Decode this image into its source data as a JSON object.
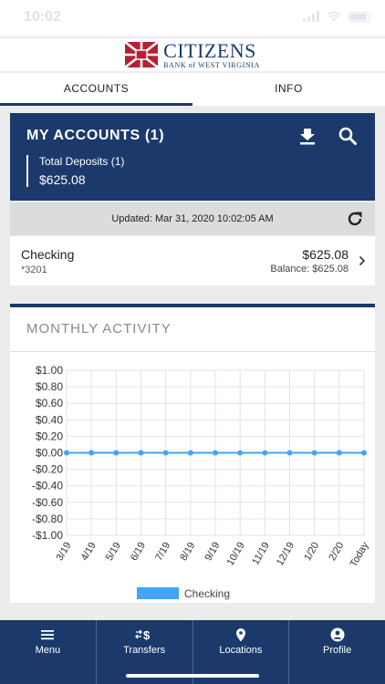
{
  "status": {
    "time": "10:02"
  },
  "brand": {
    "name": "CITIZENS",
    "sub": "BANK of WEST VIRGINIA"
  },
  "tabs": [
    {
      "label": "ACCOUNTS",
      "active": true
    },
    {
      "label": "INFO",
      "active": false
    }
  ],
  "accounts_header": {
    "title": "MY ACCOUNTS (1)",
    "summary_label": "Total Deposits (1)",
    "summary_amount": "$625.08",
    "icons": [
      "download-icon",
      "search-icon"
    ]
  },
  "updated": {
    "prefix": "Updated: ",
    "timestamp": "Mar 31, 2020 10:02:05 AM"
  },
  "account": {
    "name": "Checking",
    "number": "*3201",
    "amount": "$625.08",
    "balance": "Balance: $625.08"
  },
  "monthly_activity": {
    "title": "MONTHLY ACTIVITY"
  },
  "chart_data": {
    "type": "line",
    "title": "",
    "categories": [
      "3/19",
      "4/19",
      "5/19",
      "6/19",
      "7/19",
      "8/19",
      "9/19",
      "10/19",
      "11/19",
      "12/19",
      "1/20",
      "2/20",
      "Today"
    ],
    "series": [
      {
        "name": "Checking",
        "values": [
          0,
          0,
          0,
          0,
          0,
          0,
          0,
          0,
          0,
          0,
          0,
          0,
          0
        ],
        "color": "#42a5f5"
      }
    ],
    "yticks": [
      "$1.00",
      "$0.80",
      "$0.60",
      "$0.40",
      "$0.20",
      "$0.00",
      "-$0.20",
      "-$0.40",
      "-$0.60",
      "-$0.80",
      "-$1.00"
    ],
    "ylim": [
      -1.0,
      1.0
    ],
    "grid": true,
    "legend": "bottom-center"
  },
  "nav": [
    {
      "label": "Menu",
      "icon": "menu-icon"
    },
    {
      "label": "Transfers",
      "icon": "transfers-icon"
    },
    {
      "label": "Locations",
      "icon": "location-pin-icon"
    },
    {
      "label": "Profile",
      "icon": "profile-icon"
    }
  ],
  "colors": {
    "brand": "#1b3a6b",
    "series": "#42a5f5",
    "brand_red": "#b22234"
  }
}
